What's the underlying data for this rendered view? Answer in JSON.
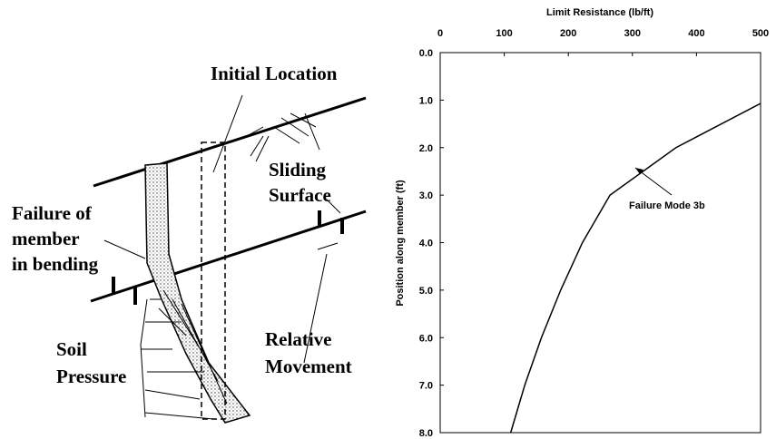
{
  "diagram": {
    "initial_location": "Initial Location",
    "sliding_surface": [
      "Sliding",
      "Surface"
    ],
    "failure": [
      "Failure of",
      "member",
      "in bending"
    ],
    "soil_pressure": [
      "Soil",
      "Pressure"
    ],
    "relative_movement": [
      "Relative",
      "Movement"
    ]
  },
  "chart_data": {
    "type": "line",
    "x_label": "Limit Resistance  (lb/ft)",
    "y_label": "Position along member (ft)",
    "annotation": "Failure Mode 3b",
    "x": [
      110,
      132,
      158,
      188,
      222,
      265,
      368,
      500
    ],
    "values": [
      8.0,
      7.0,
      6.0,
      5.0,
      4.0,
      3.0,
      2.0,
      1.07
    ],
    "color": "#000000",
    "xlim": [
      0,
      500
    ],
    "xticks": [
      0,
      100,
      200,
      300,
      400,
      500
    ],
    "ylim": [
      0,
      8
    ],
    "y_inverted": true,
    "yticks": [
      {
        "value": 0,
        "label": "0.0"
      },
      {
        "value": 1,
        "label": "1.0"
      },
      {
        "value": 2,
        "label": "2.0"
      },
      {
        "value": 3,
        "label": "3.0"
      },
      {
        "value": 4,
        "label": "4.0"
      },
      {
        "value": 5,
        "label": "5.0"
      },
      {
        "value": 6,
        "label": "6.0"
      },
      {
        "value": 7,
        "label": "7.0"
      },
      {
        "value": 8,
        "label": "8.0"
      }
    ]
  }
}
